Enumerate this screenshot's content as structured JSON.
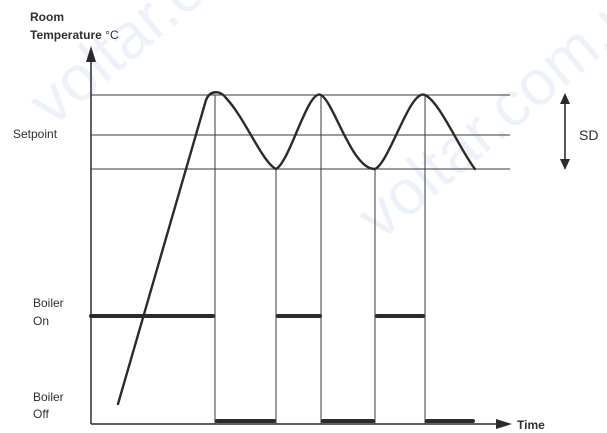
{
  "axes": {
    "y_title_line1": "Room",
    "y_title_line2_bold": "Temperature",
    "y_title_unit": " °C",
    "x_title": "Time"
  },
  "levels": {
    "setpoint": "Setpoint",
    "sd": "SD"
  },
  "boiler": {
    "on_line1": "Boiler",
    "on_line2": "On",
    "off_line1": "Boiler",
    "off_line2": "Off"
  },
  "watermark": {
    "text": "voltar.com.ua"
  },
  "colors": {
    "stroke": "#2b2b2b",
    "thin": "#3a3a3a",
    "watermark": "#dfe9f7"
  }
}
